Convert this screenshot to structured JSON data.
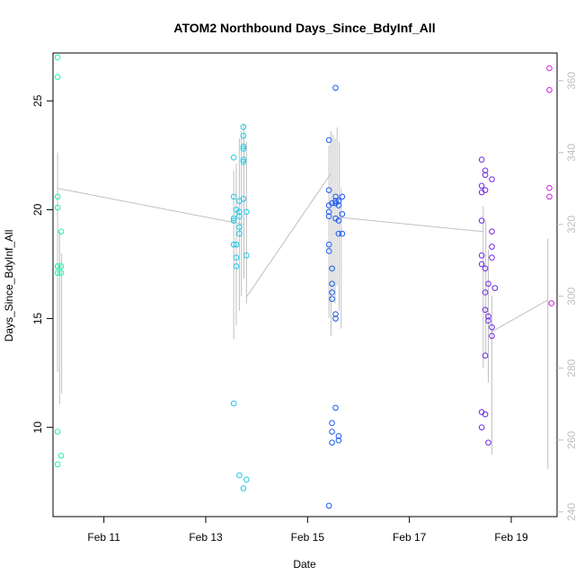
{
  "chart_data": {
    "type": "scatter",
    "title": "ATOM2 Northbound Days_Since_BdyInf_All",
    "xlabel": "Date",
    "ylabel": "Days_Since_BdyInf_All",
    "x_axis": {
      "ticks": [
        {
          "label": "Feb 11",
          "day": 11
        },
        {
          "label": "Feb 13",
          "day": 13
        },
        {
          "label": "Feb 15",
          "day": 15
        },
        {
          "label": "Feb 17",
          "day": 17
        },
        {
          "label": "Feb 19",
          "day": 19
        }
      ],
      "range": [
        10.0,
        19.9
      ]
    },
    "y_left": {
      "ticks": [
        10,
        15,
        20,
        25
      ],
      "range": [
        5.9,
        27.2
      ]
    },
    "y_right": {
      "ticks": [
        240,
        260,
        280,
        300,
        320,
        340,
        360
      ],
      "range": [
        238.7,
        367.7
      ],
      "color": "#c0c0c0"
    },
    "colors": {
      "line": "#c0c0c0",
      "group1": "#1EF2B0",
      "group2": "#1EC8E6",
      "group3": "#1E5AF0",
      "group4": "#6E28E6",
      "group5": "#D21EE6"
    },
    "points": [
      {
        "group": "group1",
        "xs": [
          10.09
        ],
        "ys": [
          27.0,
          26.1,
          20.6,
          20.1,
          17.4,
          17.4,
          17.1,
          9.8,
          8.3
        ]
      },
      {
        "group": "group1",
        "xs": [
          10.16
        ],
        "ys": [
          19.0,
          17.4,
          17.1,
          8.7
        ]
      },
      {
        "group": "group2",
        "xs": [
          13.55
        ],
        "ys": [
          22.4,
          20.6,
          19.6,
          19.5,
          18.4,
          11.1
        ]
      },
      {
        "group": "group2",
        "xs": [
          13.6
        ],
        "ys": [
          20.0,
          18.4,
          17.8,
          17.4
        ]
      },
      {
        "group": "group2",
        "xs": [
          13.66
        ],
        "ys": [
          20.4,
          19.9,
          19.7,
          19.2,
          18.9,
          7.8
        ]
      },
      {
        "group": "group2",
        "xs": [
          13.74
        ],
        "ys": [
          23.8,
          23.4,
          22.9,
          22.8,
          22.3,
          22.2,
          20.5,
          7.2
        ]
      },
      {
        "group": "group2",
        "xs": [
          13.8
        ],
        "ys": [
          19.9,
          17.9,
          7.6
        ]
      },
      {
        "group": "group3",
        "xs": [
          15.42
        ],
        "ys": [
          23.2,
          20.9,
          20.2,
          19.9,
          19.7,
          18.4,
          18.1,
          6.4
        ]
      },
      {
        "group": "group3",
        "xs": [
          15.48
        ],
        "ys": [
          20.3,
          17.3,
          16.6,
          16.2,
          15.9,
          10.2,
          9.8,
          9.3
        ]
      },
      {
        "group": "group3",
        "xs": [
          15.55
        ],
        "ys": [
          25.6,
          20.6,
          20.4,
          20.3,
          19.6,
          15.2,
          15.0,
          10.9
        ]
      },
      {
        "group": "group3",
        "xs": [
          15.61
        ],
        "ys": [
          20.4,
          20.2,
          19.5,
          18.9,
          9.6,
          9.4
        ]
      },
      {
        "group": "group3",
        "xs": [
          15.68
        ],
        "ys": [
          20.6,
          19.8,
          18.9
        ]
      },
      {
        "group": "group4",
        "xs": [
          18.42
        ],
        "ys": [
          22.3,
          21.1,
          20.8,
          19.5,
          17.9,
          17.5,
          10.7,
          10.0
        ]
      },
      {
        "group": "group4",
        "xs": [
          18.49
        ],
        "ys": [
          21.8,
          21.6,
          20.9,
          17.3,
          16.2,
          15.4,
          13.3,
          10.6
        ]
      },
      {
        "group": "group4",
        "xs": [
          18.55
        ],
        "ys": [
          16.6,
          15.1,
          14.9,
          9.3
        ]
      },
      {
        "group": "group4",
        "xs": [
          18.62
        ],
        "ys": [
          21.4,
          19.0,
          18.3,
          17.8,
          14.6,
          14.2
        ]
      },
      {
        "group": "group4",
        "xs": [
          18.68
        ],
        "ys": [
          16.4
        ]
      },
      {
        "group": "group5",
        "xs": [
          19.75
        ],
        "ys": [
          26.5,
          25.5,
          21.0,
          20.6
        ]
      },
      {
        "group": "group5",
        "xs": [
          19.79
        ],
        "ys": [
          15.7
        ]
      }
    ],
    "line_segments_right_axis": [
      [
        [
          10.1,
          330
        ],
        [
          13.75,
          320
        ]
      ],
      [
        [
          13.81,
          300
        ],
        [
          15.45,
          334
        ]
      ],
      [
        [
          15.6,
          322
        ],
        [
          18.45,
          318
        ]
      ],
      [
        [
          18.6,
          290
        ],
        [
          19.72,
          299
        ]
      ]
    ],
    "spikes_right_axis": [
      {
        "x": 10.09,
        "lo": 279,
        "hi": 340
      },
      {
        "x": 10.13,
        "lo": 270,
        "hi": 318
      },
      {
        "x": 10.17,
        "lo": 273,
        "hi": 312
      },
      {
        "x": 13.55,
        "lo": 288,
        "hi": 335
      },
      {
        "x": 13.6,
        "lo": 292,
        "hi": 337
      },
      {
        "x": 13.66,
        "lo": 296,
        "hi": 344
      },
      {
        "x": 13.7,
        "lo": 300,
        "hi": 346
      },
      {
        "x": 13.75,
        "lo": 305,
        "hi": 348
      },
      {
        "x": 13.8,
        "lo": 298,
        "hi": 343
      },
      {
        "x": 15.42,
        "lo": 294,
        "hi": 342
      },
      {
        "x": 15.46,
        "lo": 289,
        "hi": 346
      },
      {
        "x": 15.5,
        "lo": 301,
        "hi": 345
      },
      {
        "x": 15.54,
        "lo": 298,
        "hi": 344
      },
      {
        "x": 15.58,
        "lo": 303,
        "hi": 347
      },
      {
        "x": 15.62,
        "lo": 296,
        "hi": 343
      },
      {
        "x": 15.66,
        "lo": 291,
        "hi": 330
      },
      {
        "x": 18.45,
        "lo": 280,
        "hi": 325
      },
      {
        "x": 18.5,
        "lo": 284,
        "hi": 321
      },
      {
        "x": 18.55,
        "lo": 276,
        "hi": 313
      },
      {
        "x": 18.62,
        "lo": 256,
        "hi": 300
      },
      {
        "x": 19.72,
        "lo": 252,
        "hi": 316
      }
    ]
  }
}
